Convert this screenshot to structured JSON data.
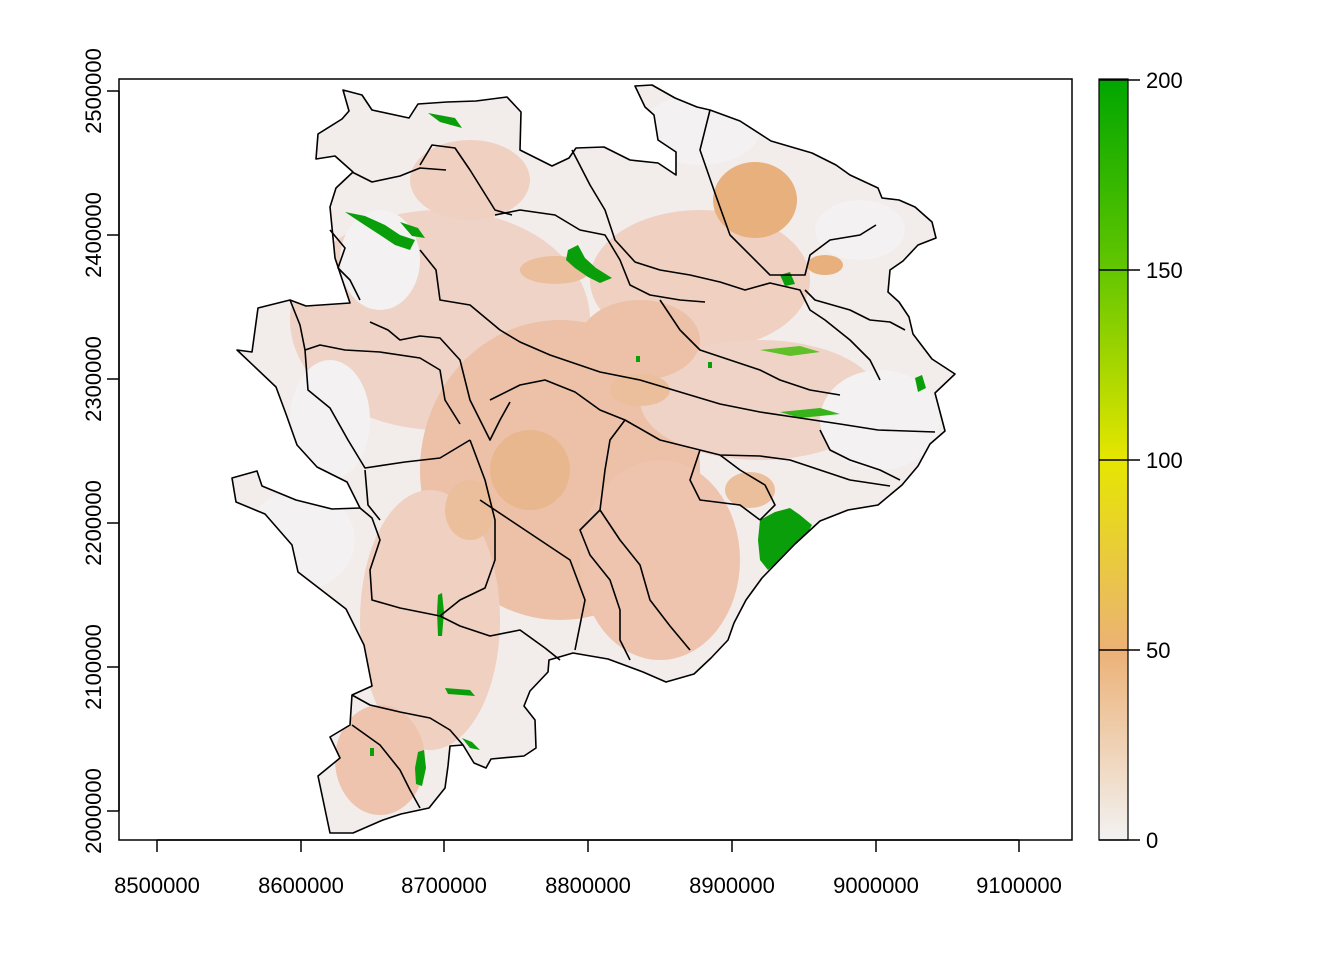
{
  "map": {
    "x_ticks": [
      "8500000",
      "8600000",
      "8700000",
      "8800000",
      "8900000",
      "9000000",
      "9100000"
    ],
    "y_ticks": [
      "2000000",
      "2100000",
      "2200000",
      "2300000",
      "2400000",
      "2500000"
    ],
    "x_range": [
      8473000,
      9137000
    ],
    "y_range": [
      1981000,
      2510000
    ]
  },
  "legend": {
    "ticks": [
      "0",
      "50",
      "100",
      "150",
      "200"
    ],
    "value_range": [
      0,
      200
    ],
    "gradient_colors": [
      "#f2f2f2",
      "#ecb176",
      "#e6e600",
      "#63c600",
      "#00a600"
    ]
  },
  "colors": {
    "low_fill": "#f2eceb",
    "mid_fill": "#eec4ae",
    "high_fill": "#e7b07c",
    "forest": "#0a9e0a",
    "boundary": "#000000"
  }
}
